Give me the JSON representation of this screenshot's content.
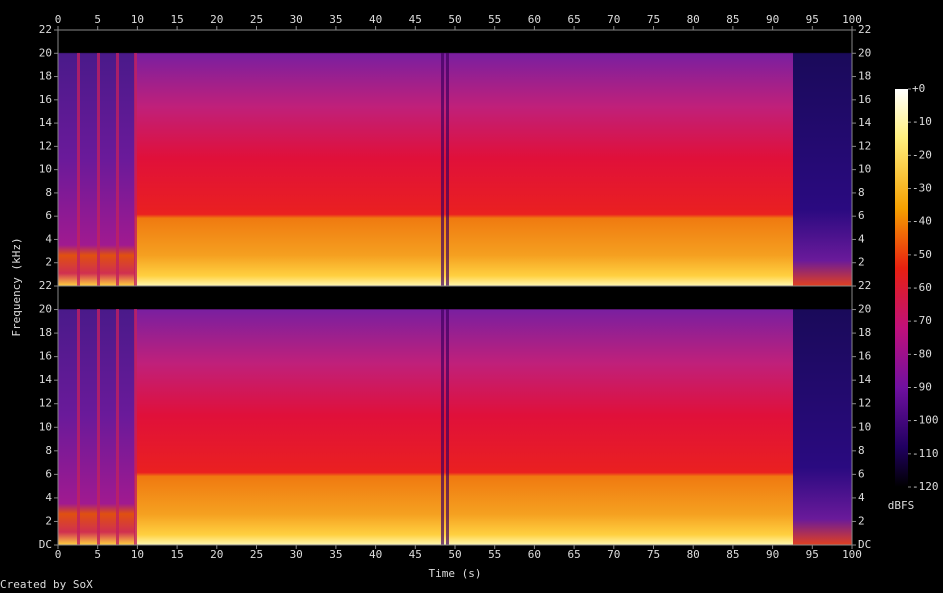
{
  "chart_data": {
    "type": "spectrogram",
    "xlabel": "Time (s)",
    "ylabel": "Frequency (kHz)",
    "xlim": [
      0,
      100
    ],
    "xticks": [
      0,
      5,
      10,
      15,
      20,
      25,
      30,
      35,
      40,
      45,
      50,
      55,
      60,
      65,
      70,
      75,
      80,
      85,
      90,
      95,
      100
    ],
    "panels": [
      {
        "ylim": [
          0,
          22
        ],
        "yticks": [
          2,
          4,
          6,
          8,
          10,
          12,
          14,
          16,
          18,
          20,
          22
        ]
      },
      {
        "ylim": [
          0,
          22
        ],
        "yticks": [
          {
            "value": 0,
            "label": "DC"
          },
          2,
          4,
          6,
          8,
          10,
          12,
          14,
          16,
          18,
          20,
          22
        ]
      }
    ],
    "colorbar": {
      "label": "dBFS",
      "lim": [
        -120,
        0
      ],
      "ticks": [
        {
          "value": 0,
          "label": "+0"
        },
        -10,
        -20,
        -30,
        -40,
        -50,
        -60,
        -70,
        -80,
        -90,
        -100,
        -110,
        -120
      ]
    }
  },
  "footer": "Created by SoX"
}
